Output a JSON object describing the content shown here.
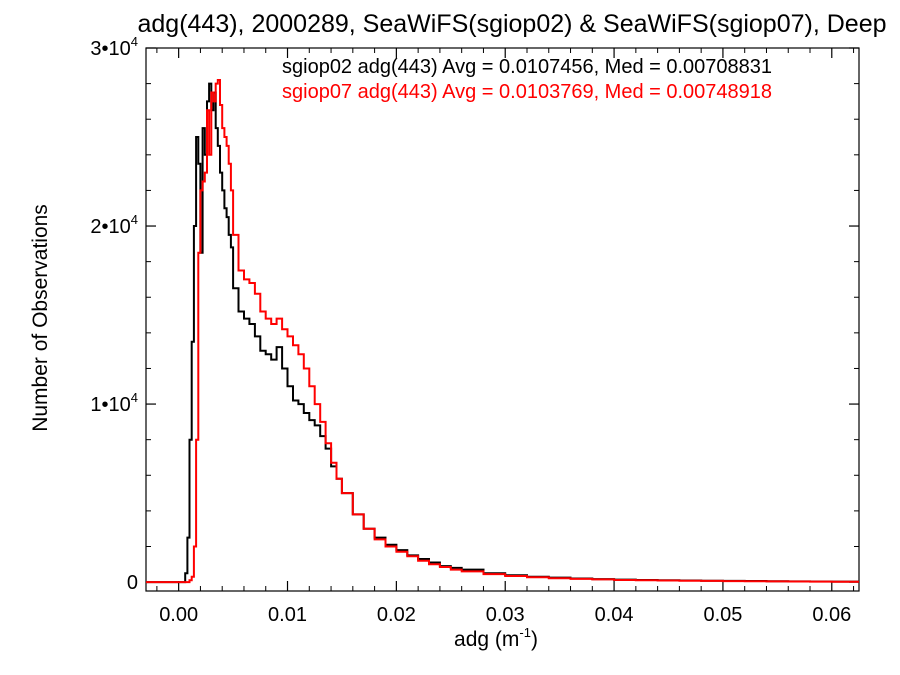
{
  "chart_data": {
    "type": "line",
    "title": "adg(443), 2000289, SeaWiFS(sgiop02) & SeaWiFS(sgiop07), Deep",
    "xlabel": "adg (m",
    "xlabel_sup": "-1",
    "xlabel_suffix": ")",
    "ylabel": "Number of Observations",
    "xlim": [
      -0.003,
      0.0625
    ],
    "ylim": [
      -500,
      30000
    ],
    "x_ticks": [
      {
        "value": 0.0,
        "label": "0.00"
      },
      {
        "value": 0.01,
        "label": "0.01"
      },
      {
        "value": 0.02,
        "label": "0.02"
      },
      {
        "value": 0.03,
        "label": "0.03"
      },
      {
        "value": 0.04,
        "label": "0.04"
      },
      {
        "value": 0.05,
        "label": "0.05"
      },
      {
        "value": 0.06,
        "label": "0.06"
      }
    ],
    "y_ticks": [
      {
        "value": 0,
        "label": "0",
        "sup": ""
      },
      {
        "value": 10000,
        "label": "1•10",
        "sup": "4"
      },
      {
        "value": 20000,
        "label": "2•10",
        "sup": "4"
      },
      {
        "value": 30000,
        "label": "3•10",
        "sup": "4"
      }
    ],
    "legend_position": "top-right",
    "series": [
      {
        "name": "sgiop02 adg(443) Avg = 0.0107456, Med = 0.00708831",
        "color": "#000000",
        "x": [
          0.0004,
          0.0006,
          0.0008,
          0.001,
          0.0012,
          0.0014,
          0.0016,
          0.0018,
          0.002,
          0.0022,
          0.0024,
          0.0026,
          0.0028,
          0.003,
          0.0032,
          0.0034,
          0.0036,
          0.0038,
          0.004,
          0.0042,
          0.0044,
          0.0046,
          0.0048,
          0.005,
          0.0055,
          0.006,
          0.0065,
          0.007,
          0.0075,
          0.008,
          0.0085,
          0.009,
          0.0095,
          0.01,
          0.0105,
          0.011,
          0.0115,
          0.012,
          0.0125,
          0.013,
          0.0135,
          0.014,
          0.0145,
          0.015,
          0.016,
          0.017,
          0.018,
          0.019,
          0.02,
          0.021,
          0.022,
          0.023,
          0.024,
          0.025,
          0.026,
          0.028,
          0.03,
          0.032,
          0.034,
          0.036,
          0.038,
          0.04,
          0.042,
          0.044,
          0.046,
          0.048,
          0.05,
          0.052,
          0.054,
          0.056,
          0.058,
          0.06,
          0.0625
        ],
        "values": [
          0,
          500,
          2500,
          8000,
          13500,
          20000,
          25000,
          23500,
          18500,
          25500,
          24000,
          27000,
          28000,
          26500,
          27500,
          25500,
          24500,
          23000,
          22000,
          21000,
          20500,
          19500,
          18800,
          16500,
          15200,
          14800,
          14500,
          13800,
          13000,
          12800,
          12500,
          13200,
          12000,
          11000,
          10200,
          10000,
          9500,
          9100,
          8800,
          8200,
          7500,
          6500,
          5800,
          5000,
          3800,
          3000,
          2500,
          2100,
          1800,
          1500,
          1300,
          1100,
          900,
          800,
          700,
          500,
          380,
          300,
          250,
          200,
          170,
          140,
          120,
          100,
          90,
          80,
          70,
          60,
          50,
          40,
          35,
          30,
          25
        ]
      },
      {
        "name": "sgiop07 adg(443) Avg = 0.0103769, Med = 0.00748918",
        "color": "#ff0000",
        "x": [
          0.0006,
          0.0008,
          0.001,
          0.0012,
          0.0014,
          0.0016,
          0.0018,
          0.002,
          0.0022,
          0.0024,
          0.0026,
          0.0028,
          0.003,
          0.0032,
          0.0034,
          0.0036,
          0.0038,
          0.004,
          0.0042,
          0.0044,
          0.0046,
          0.0048,
          0.005,
          0.0055,
          0.006,
          0.0065,
          0.007,
          0.0075,
          0.008,
          0.0085,
          0.009,
          0.0095,
          0.01,
          0.0105,
          0.011,
          0.0115,
          0.012,
          0.0125,
          0.013,
          0.0135,
          0.014,
          0.0145,
          0.015,
          0.016,
          0.017,
          0.018,
          0.019,
          0.02,
          0.021,
          0.022,
          0.023,
          0.024,
          0.025,
          0.026,
          0.028,
          0.03,
          0.032,
          0.034,
          0.036,
          0.038,
          0.04,
          0.042,
          0.044,
          0.046,
          0.048,
          0.05,
          0.052,
          0.054,
          0.056,
          0.058,
          0.06,
          0.0625
        ],
        "values": [
          0,
          0,
          100,
          300,
          2000,
          8000,
          18500,
          22000,
          22500,
          23000,
          26500,
          24000,
          27500,
          27000,
          28000,
          28200,
          26800,
          25500,
          25000,
          24500,
          23500,
          22000,
          19500,
          17500,
          17000,
          16800,
          16200,
          15200,
          14800,
          14500,
          14800,
          14200,
          13800,
          13300,
          12800,
          12000,
          11000,
          10000,
          9000,
          7800,
          6700,
          5800,
          5000,
          3800,
          3000,
          2400,
          2000,
          1700,
          1450,
          1200,
          1000,
          850,
          700,
          600,
          450,
          340,
          270,
          220,
          180,
          150,
          120,
          100,
          90,
          75,
          65,
          55,
          45,
          40,
          32,
          28,
          24,
          20
        ]
      }
    ]
  }
}
